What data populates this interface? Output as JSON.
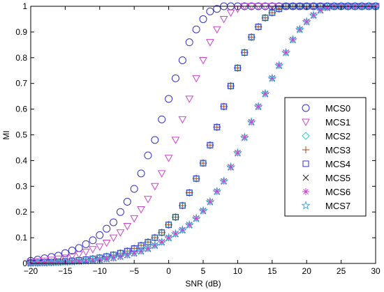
{
  "chart_data": {
    "type": "scatter",
    "title": "",
    "xlabel": "SNR  (dB)",
    "ylabel": "MI",
    "xlim": [
      -20,
      30
    ],
    "ylim": [
      0,
      1
    ],
    "xticks": [
      "−20",
      "−15",
      "−10",
      "−5",
      "0",
      "5",
      "10",
      "15",
      "20",
      "25",
      "30"
    ],
    "yticks": [
      "0",
      "0.1",
      "0.2",
      "0.3",
      "0.4",
      "0.5",
      "0.6",
      "0.7",
      "0.8",
      "0.9",
      "1"
    ],
    "grid": false,
    "legend_position": "right",
    "x": [
      -20,
      -19,
      -18,
      -17,
      -16,
      -15,
      -14,
      -13,
      -12,
      -11,
      -10,
      -9,
      -8,
      -7,
      -6,
      -5,
      -4,
      -3,
      -2,
      -1,
      0,
      1,
      2,
      3,
      4,
      5,
      6,
      7,
      8,
      9,
      10,
      11,
      12,
      13,
      14,
      15,
      16,
      17,
      18,
      19,
      20,
      21,
      22,
      23,
      24,
      25,
      26,
      27,
      28,
      29,
      30
    ],
    "series": [
      {
        "name": "MCS0",
        "marker": "circle",
        "color": "#3333cc",
        "values": [
          0.01,
          0.015,
          0.02,
          0.025,
          0.03,
          0.04,
          0.05,
          0.06,
          0.075,
          0.09,
          0.11,
          0.135,
          0.16,
          0.2,
          0.24,
          0.29,
          0.35,
          0.42,
          0.48,
          0.56,
          0.64,
          0.72,
          0.79,
          0.86,
          0.91,
          0.95,
          0.98,
          0.99,
          1.0,
          1.0,
          1.0,
          1.0,
          1.0,
          1.0,
          1.0,
          1.0,
          1.0,
          1.0,
          1.0,
          1.0,
          1.0,
          1.0,
          1.0,
          1.0,
          1.0,
          1.0,
          1.0,
          1.0,
          1.0,
          1.0,
          1.0
        ]
      },
      {
        "name": "MCS1",
        "marker": "triangle-down",
        "color": "#cc44cc",
        "values": [
          0.005,
          0.008,
          0.01,
          0.014,
          0.018,
          0.022,
          0.028,
          0.035,
          0.045,
          0.055,
          0.065,
          0.08,
          0.1,
          0.12,
          0.145,
          0.175,
          0.21,
          0.25,
          0.3,
          0.35,
          0.41,
          0.48,
          0.56,
          0.64,
          0.72,
          0.79,
          0.86,
          0.91,
          0.95,
          0.975,
          0.99,
          1.0,
          1.0,
          1.0,
          1.0,
          1.0,
          1.0,
          1.0,
          1.0,
          1.0,
          1.0,
          1.0,
          1.0,
          1.0,
          1.0,
          1.0,
          1.0,
          1.0,
          1.0,
          1.0,
          1.0
        ]
      },
      {
        "name": "MCS2",
        "marker": "diamond",
        "color": "#33cccc",
        "values": [
          0.002,
          0.003,
          0.004,
          0.005,
          0.006,
          0.008,
          0.01,
          0.012,
          0.015,
          0.018,
          0.022,
          0.027,
          0.033,
          0.04,
          0.048,
          0.058,
          0.07,
          0.083,
          0.1,
          0.12,
          0.15,
          0.18,
          0.225,
          0.275,
          0.33,
          0.39,
          0.46,
          0.53,
          0.61,
          0.69,
          0.76,
          0.82,
          0.88,
          0.92,
          0.955,
          0.975,
          0.99,
          1.0,
          1.0,
          1.0,
          1.0,
          1.0,
          1.0,
          1.0,
          1.0,
          1.0,
          1.0,
          1.0,
          1.0,
          1.0,
          1.0
        ]
      },
      {
        "name": "MCS3",
        "marker": "plus",
        "color": "#aa4422",
        "values": [
          0.002,
          0.003,
          0.004,
          0.005,
          0.006,
          0.008,
          0.01,
          0.012,
          0.015,
          0.018,
          0.022,
          0.027,
          0.033,
          0.04,
          0.048,
          0.058,
          0.07,
          0.083,
          0.1,
          0.12,
          0.15,
          0.18,
          0.225,
          0.275,
          0.33,
          0.39,
          0.46,
          0.53,
          0.61,
          0.69,
          0.76,
          0.82,
          0.88,
          0.92,
          0.955,
          0.975,
          0.99,
          1.0,
          1.0,
          1.0,
          1.0,
          1.0,
          1.0,
          1.0,
          1.0,
          1.0,
          1.0,
          1.0,
          1.0,
          1.0,
          1.0
        ]
      },
      {
        "name": "MCS4",
        "marker": "square",
        "color": "#3333cc",
        "values": [
          0.002,
          0.003,
          0.004,
          0.005,
          0.006,
          0.008,
          0.01,
          0.012,
          0.015,
          0.018,
          0.022,
          0.027,
          0.033,
          0.04,
          0.048,
          0.058,
          0.07,
          0.083,
          0.1,
          0.12,
          0.15,
          0.18,
          0.225,
          0.275,
          0.33,
          0.39,
          0.46,
          0.53,
          0.61,
          0.69,
          0.76,
          0.82,
          0.88,
          0.92,
          0.955,
          0.975,
          0.99,
          1.0,
          1.0,
          1.0,
          1.0,
          1.0,
          1.0,
          1.0,
          1.0,
          1.0,
          1.0,
          1.0,
          1.0,
          1.0,
          1.0
        ]
      },
      {
        "name": "MCS5",
        "marker": "x",
        "color": "#222222",
        "values": [
          0.001,
          0.0015,
          0.002,
          0.003,
          0.004,
          0.005,
          0.006,
          0.008,
          0.01,
          0.012,
          0.015,
          0.018,
          0.022,
          0.027,
          0.033,
          0.04,
          0.048,
          0.058,
          0.07,
          0.083,
          0.1,
          0.115,
          0.13,
          0.15,
          0.175,
          0.205,
          0.24,
          0.28,
          0.32,
          0.375,
          0.43,
          0.49,
          0.55,
          0.61,
          0.66,
          0.72,
          0.77,
          0.82,
          0.87,
          0.91,
          0.94,
          0.965,
          0.985,
          0.995,
          1.0,
          1.0,
          1.0,
          1.0,
          1.0,
          1.0,
          1.0
        ]
      },
      {
        "name": "MCS6",
        "marker": "star",
        "color": "#cc44cc",
        "values": [
          0.001,
          0.0015,
          0.002,
          0.003,
          0.004,
          0.005,
          0.006,
          0.008,
          0.01,
          0.012,
          0.015,
          0.018,
          0.022,
          0.027,
          0.033,
          0.04,
          0.048,
          0.058,
          0.07,
          0.083,
          0.1,
          0.115,
          0.13,
          0.15,
          0.175,
          0.205,
          0.24,
          0.28,
          0.32,
          0.375,
          0.43,
          0.49,
          0.55,
          0.61,
          0.66,
          0.72,
          0.77,
          0.82,
          0.87,
          0.91,
          0.94,
          0.965,
          0.985,
          0.995,
          1.0,
          1.0,
          1.0,
          1.0,
          1.0,
          1.0,
          1.0
        ]
      },
      {
        "name": "MCS7",
        "marker": "pentagram",
        "color": "#44aadd",
        "values": [
          0.001,
          0.0015,
          0.002,
          0.003,
          0.004,
          0.005,
          0.006,
          0.008,
          0.01,
          0.012,
          0.015,
          0.018,
          0.022,
          0.027,
          0.033,
          0.04,
          0.048,
          0.058,
          0.07,
          0.083,
          0.1,
          0.115,
          0.13,
          0.15,
          0.175,
          0.205,
          0.24,
          0.28,
          0.32,
          0.375,
          0.43,
          0.49,
          0.55,
          0.61,
          0.66,
          0.72,
          0.77,
          0.82,
          0.87,
          0.91,
          0.94,
          0.965,
          0.985,
          0.995,
          1.0,
          1.0,
          1.0,
          1.0,
          1.0,
          1.0,
          1.0
        ]
      }
    ]
  }
}
